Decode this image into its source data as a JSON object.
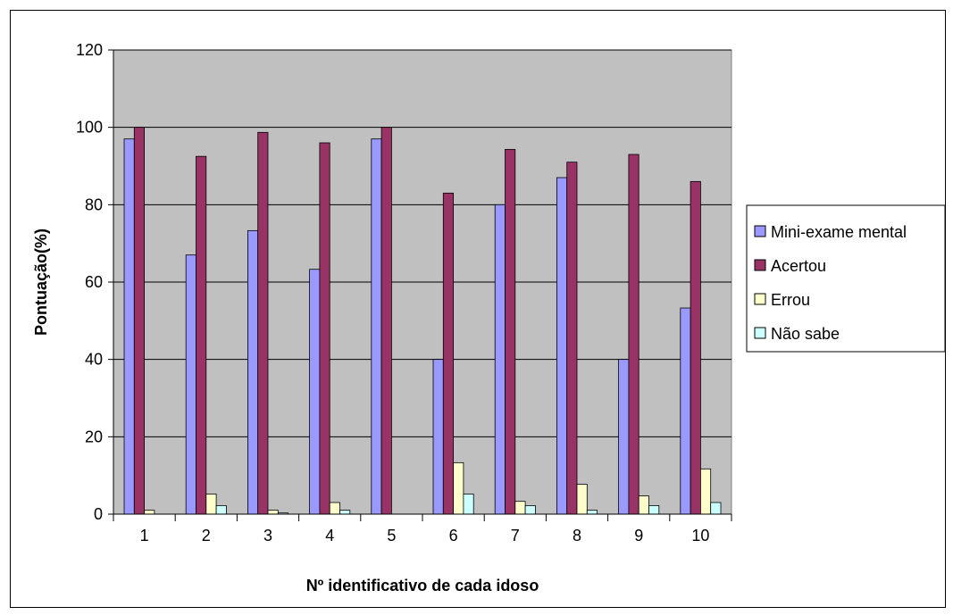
{
  "chart_data": {
    "type": "bar",
    "title": "",
    "xlabel": "Nº identificativo de cada idoso",
    "ylabel": "Pontuação(%)",
    "ylim": [
      0,
      120
    ],
    "yticks": [
      0,
      20,
      40,
      60,
      80,
      100,
      120
    ],
    "categories": [
      "1",
      "2",
      "3",
      "4",
      "5",
      "6",
      "7",
      "8",
      "9",
      "10"
    ],
    "grid": true,
    "legend_position": "right",
    "plot_background": "#c0c0c0",
    "series": [
      {
        "name": "Mini-exame mental",
        "color": "#9999ff",
        "values": [
          97,
          67,
          73.3,
          63.3,
          97,
          40,
          80,
          87,
          40,
          53.3
        ]
      },
      {
        "name": "Acertou",
        "color": "#993366",
        "values": [
          100,
          92.5,
          98.7,
          96,
          100,
          83,
          94.3,
          91,
          93,
          86
        ]
      },
      {
        "name": "Errou",
        "color": "#ffffcc",
        "values": [
          1,
          5.2,
          1,
          3,
          0,
          13.3,
          3.3,
          7.7,
          4.7,
          11.7
        ]
      },
      {
        "name": "Não sabe",
        "color": "#ccffff",
        "values": [
          0,
          2.2,
          0.3,
          1,
          0,
          5.2,
          2.2,
          1,
          2.2,
          3
        ]
      }
    ]
  }
}
